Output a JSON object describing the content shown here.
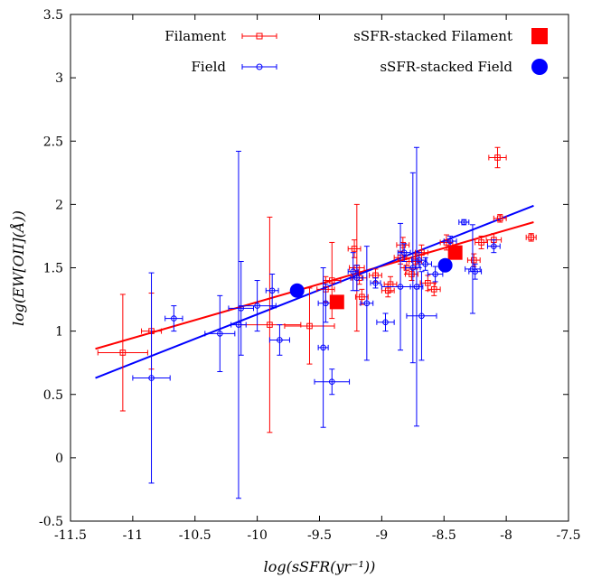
{
  "chart_data": {
    "type": "scatter",
    "xlabel": "log(sSFR(yr⁻¹))",
    "ylabel": "log(EW[OII](Å))",
    "xlim": [
      -11.5,
      -7.5
    ],
    "ylim": [
      -0.5,
      3.5
    ],
    "xticks": [
      "-11.5",
      "-11",
      "-10.5",
      "-10",
      "-9.5",
      "-9",
      "-8.5",
      "-8",
      "-7.5"
    ],
    "yticks": [
      "-0.5",
      "0",
      "0.5",
      "1",
      "1.5",
      "2",
      "2.5",
      "3",
      "3.5"
    ],
    "grid": false,
    "legend_position": "top",
    "series": [
      {
        "name": "Filament",
        "color": "#ff0000",
        "marker": "open-square",
        "points": [
          {
            "x": -11.08,
            "y": 0.83,
            "xerr": 0.2,
            "yerr": 0.46
          },
          {
            "x": -10.85,
            "y": 1.0,
            "xerr": 0.08,
            "yerr": 0.3
          },
          {
            "x": -9.9,
            "y": 1.05,
            "xerr": 0.25,
            "yerr": 0.85
          },
          {
            "x": -9.58,
            "y": 1.04,
            "xerr": 0.2,
            "yerr": 0.3
          },
          {
            "x": -9.45,
            "y": 1.33,
            "xerr": 0.07,
            "yerr": 0.1
          },
          {
            "x": -9.4,
            "y": 1.4,
            "xerr": 0.07,
            "yerr": 0.3
          },
          {
            "x": -9.22,
            "y": 1.65,
            "xerr": 0.05,
            "yerr": 0.07
          },
          {
            "x": -9.2,
            "y": 1.5,
            "xerr": 0.06,
            "yerr": 0.5
          },
          {
            "x": -9.18,
            "y": 1.42,
            "xerr": 0.06,
            "yerr": 0.05
          },
          {
            "x": -9.16,
            "y": 1.27,
            "xerr": 0.05,
            "yerr": 0.06
          },
          {
            "x": -9.05,
            "y": 1.44,
            "xerr": 0.05,
            "yerr": 0.05
          },
          {
            "x": -8.95,
            "y": 1.32,
            "xerr": 0.05,
            "yerr": 0.05
          },
          {
            "x": -8.93,
            "y": 1.37,
            "xerr": 0.05,
            "yerr": 0.06
          },
          {
            "x": -8.85,
            "y": 1.58,
            "xerr": 0.05,
            "yerr": 0.05
          },
          {
            "x": -8.83,
            "y": 1.68,
            "xerr": 0.05,
            "yerr": 0.06
          },
          {
            "x": -8.8,
            "y": 1.5,
            "xerr": 0.05,
            "yerr": 0.05
          },
          {
            "x": -8.76,
            "y": 1.45,
            "xerr": 0.05,
            "yerr": 0.05
          },
          {
            "x": -8.73,
            "y": 1.55,
            "xerr": 0.05,
            "yerr": 0.06
          },
          {
            "x": -8.68,
            "y": 1.62,
            "xerr": 0.05,
            "yerr": 0.06
          },
          {
            "x": -8.63,
            "y": 1.38,
            "xerr": 0.06,
            "yerr": 0.06
          },
          {
            "x": -8.58,
            "y": 1.33,
            "xerr": 0.05,
            "yerr": 0.05
          },
          {
            "x": -8.48,
            "y": 1.7,
            "xerr": 0.05,
            "yerr": 0.06
          },
          {
            "x": -8.26,
            "y": 1.56,
            "xerr": 0.05,
            "yerr": 0.05
          },
          {
            "x": -8.2,
            "y": 1.7,
            "xerr": 0.05,
            "yerr": 0.05
          },
          {
            "x": -8.1,
            "y": 1.72,
            "xerr": 0.06,
            "yerr": 0.05
          },
          {
            "x": -8.07,
            "y": 2.37,
            "xerr": 0.07,
            "yerr": 0.08
          },
          {
            "x": -8.05,
            "y": 1.89,
            "xerr": 0.05,
            "yerr": 0.03
          },
          {
            "x": -7.8,
            "y": 1.74,
            "xerr": 0.04,
            "yerr": 0.03
          }
        ],
        "fit": {
          "x": [
            -11.3,
            -7.78
          ],
          "y": [
            0.86,
            1.86
          ]
        }
      },
      {
        "name": "Field",
        "color": "#0000ff",
        "marker": "open-circle",
        "points": [
          {
            "x": -10.85,
            "y": 0.63,
            "xerr": 0.15,
            "yerr": 0.83
          },
          {
            "x": -10.67,
            "y": 1.1,
            "xerr": 0.07,
            "yerr": 0.1
          },
          {
            "x": -10.3,
            "y": 0.98,
            "xerr": 0.12,
            "yerr": 0.3
          },
          {
            "x": -10.15,
            "y": 1.05,
            "xerr": 0.06,
            "yerr": 1.37
          },
          {
            "x": -10.13,
            "y": 1.18,
            "xerr": 0.1,
            "yerr": 0.37
          },
          {
            "x": -10.0,
            "y": 1.2,
            "xerr": 0.15,
            "yerr": 0.2
          },
          {
            "x": -9.88,
            "y": 1.32,
            "xerr": 0.05,
            "yerr": 0.13
          },
          {
            "x": -9.82,
            "y": 0.93,
            "xerr": 0.08,
            "yerr": 0.12
          },
          {
            "x": -9.47,
            "y": 0.87,
            "xerr": 0.04,
            "yerr": 0.63
          },
          {
            "x": -9.45,
            "y": 1.22,
            "xerr": 0.06,
            "yerr": 0.15
          },
          {
            "x": -9.4,
            "y": 0.6,
            "xerr": 0.14,
            "yerr": 0.1
          },
          {
            "x": -9.23,
            "y": 1.47,
            "xerr": 0.04,
            "yerr": 0.15
          },
          {
            "x": -9.2,
            "y": 1.42,
            "xerr": 0.05,
            "yerr": 0.1
          },
          {
            "x": -9.12,
            "y": 1.22,
            "xerr": 0.05,
            "yerr": 0.45
          },
          {
            "x": -9.05,
            "y": 1.38,
            "xerr": 0.04,
            "yerr": 0.04
          },
          {
            "x": -8.97,
            "y": 1.07,
            "xerr": 0.07,
            "yerr": 0.07
          },
          {
            "x": -8.85,
            "y": 1.35,
            "xerr": 0.15,
            "yerr": 0.5
          },
          {
            "x": -8.82,
            "y": 1.62,
            "xerr": 0.05,
            "yerr": 0.07
          },
          {
            "x": -8.75,
            "y": 1.5,
            "xerr": 0.06,
            "yerr": 0.75
          },
          {
            "x": -8.72,
            "y": 1.35,
            "xerr": 0.05,
            "yerr": 1.1
          },
          {
            "x": -8.7,
            "y": 1.56,
            "xerr": 0.06,
            "yerr": 0.06
          },
          {
            "x": -8.68,
            "y": 1.12,
            "xerr": 0.12,
            "yerr": 0.35
          },
          {
            "x": -8.65,
            "y": 1.53,
            "xerr": 0.05,
            "yerr": 0.05
          },
          {
            "x": -8.57,
            "y": 1.45,
            "xerr": 0.06,
            "yerr": 0.06
          },
          {
            "x": -8.45,
            "y": 1.71,
            "xerr": 0.05,
            "yerr": 0.04
          },
          {
            "x": -8.34,
            "y": 1.86,
            "xerr": 0.04,
            "yerr": 0.02
          },
          {
            "x": -8.27,
            "y": 1.49,
            "xerr": 0.06,
            "yerr": 0.35
          },
          {
            "x": -8.25,
            "y": 1.47,
            "xerr": 0.05,
            "yerr": 0.06
          },
          {
            "x": -8.1,
            "y": 1.67,
            "xerr": 0.05,
            "yerr": 0.05
          }
        ],
        "fit": {
          "x": [
            -11.3,
            -7.78
          ],
          "y": [
            0.63,
            1.99
          ]
        }
      },
      {
        "name": "sSFR-stacked Filament",
        "color": "#ff0000",
        "marker": "filled-square",
        "points": [
          {
            "x": -9.36,
            "y": 1.23
          },
          {
            "x": -8.41,
            "y": 1.62
          }
        ]
      },
      {
        "name": "sSFR-stacked Field",
        "color": "#0000ff",
        "marker": "filled-circle",
        "points": [
          {
            "x": -9.68,
            "y": 1.32
          },
          {
            "x": -8.49,
            "y": 1.52
          }
        ]
      }
    ]
  }
}
